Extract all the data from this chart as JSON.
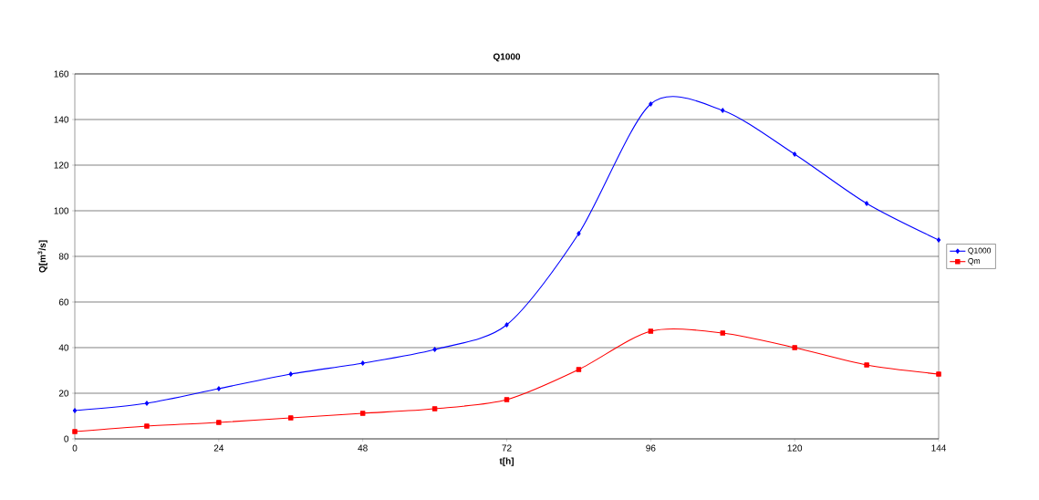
{
  "chart_data": {
    "type": "line",
    "title": "Q1000",
    "xlabel": "t[h]",
    "ylabel": "Q[m$^{3}$/s]",
    "x": [
      0,
      12,
      24,
      36,
      48,
      60,
      72,
      84,
      96,
      108,
      120,
      132,
      144
    ],
    "series": [
      {
        "name": "Q1000",
        "color": "#0000ff",
        "marker": "diamond",
        "values": [
          12.4,
          15.6,
          22,
          28.4,
          33.2,
          39.2,
          50,
          90,
          146.8,
          144,
          124.8,
          103.2,
          87.2
        ]
      },
      {
        "name": "Qm",
        "color": "#ff0000",
        "marker": "square",
        "values": [
          3.2,
          5.6,
          7.2,
          9.2,
          11.2,
          13.2,
          17.2,
          30.4,
          47.2,
          46.4,
          40,
          32.4,
          28.4
        ]
      }
    ],
    "xlim": [
      0,
      144
    ],
    "xticks": [
      0,
      24,
      48,
      72,
      96,
      120,
      144
    ],
    "ylim": [
      0,
      160
    ],
    "yticks": [
      0,
      20,
      40,
      60,
      80,
      100,
      120,
      140,
      160
    ],
    "grid": "y",
    "legend": "right",
    "line_style": "solid"
  }
}
